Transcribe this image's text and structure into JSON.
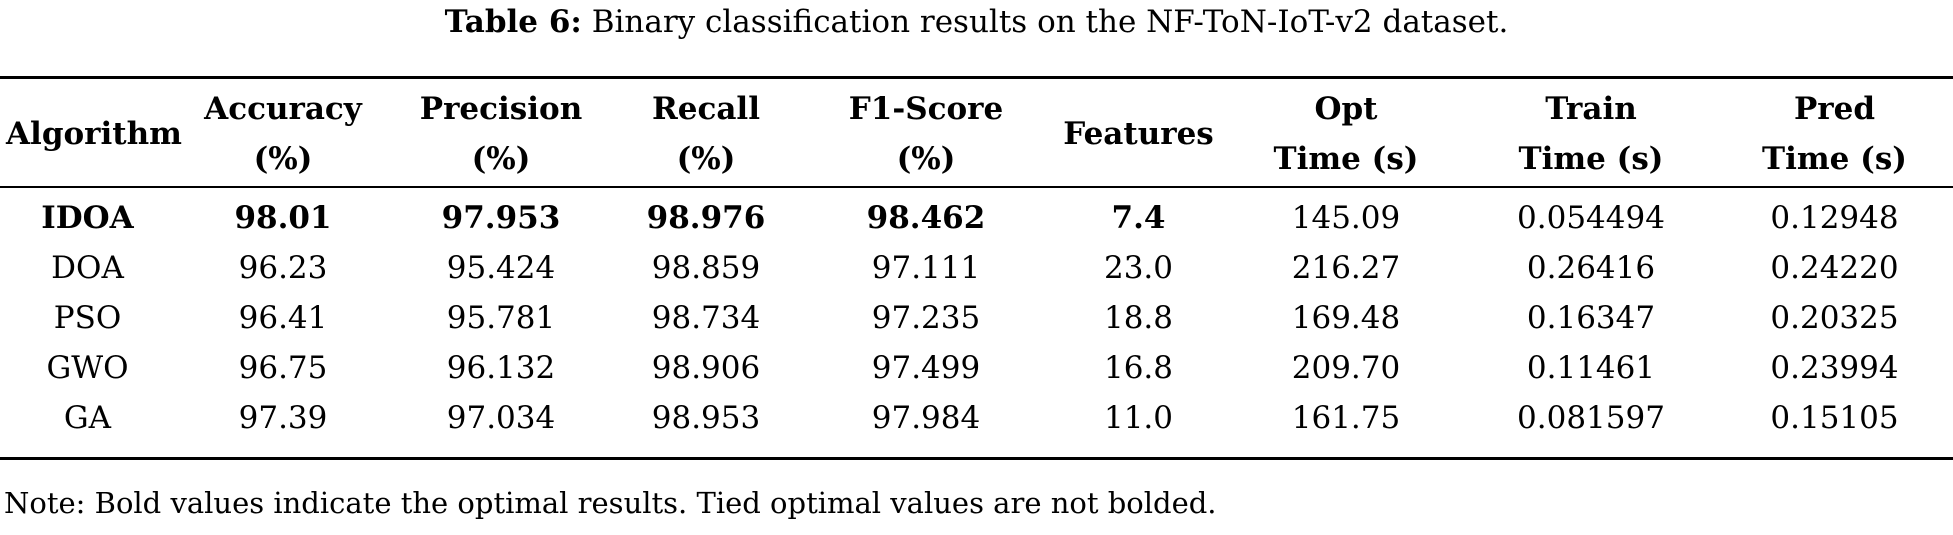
{
  "caption": {
    "label": "Table 6:",
    "text": "Binary classification results on the NF-ToN-IoT-v2 dataset."
  },
  "columns": [
    {
      "line1": "Algorithm",
      "line2": ""
    },
    {
      "line1": "Accuracy",
      "line2": "(%)"
    },
    {
      "line1": "Precision",
      "line2": "(%)"
    },
    {
      "line1": "Recall",
      "line2": "(%)"
    },
    {
      "line1": "F1-Score",
      "line2": "(%)"
    },
    {
      "line1": "Features",
      "line2": ""
    },
    {
      "line1": "Opt",
      "line2": "Time (s)"
    },
    {
      "line1": "Train",
      "line2": "Time (s)"
    },
    {
      "line1": "Pred",
      "line2": "Time (s)"
    }
  ],
  "rows": [
    {
      "algorithm": "IDOA",
      "accuracy": "98.01",
      "precision": "97.953",
      "recall": "98.976",
      "f1": "98.462",
      "features": "7.4",
      "opt_time": "145.09",
      "train_time": "0.054494",
      "pred_time": "0.12948"
    },
    {
      "algorithm": "DOA",
      "accuracy": "96.23",
      "precision": "95.424",
      "recall": "98.859",
      "f1": "97.111",
      "features": "23.0",
      "opt_time": "216.27",
      "train_time": "0.26416",
      "pred_time": "0.24220"
    },
    {
      "algorithm": "PSO",
      "accuracy": "96.41",
      "precision": "95.781",
      "recall": "98.734",
      "f1": "97.235",
      "features": "18.8",
      "opt_time": "169.48",
      "train_time": "0.16347",
      "pred_time": "0.20325"
    },
    {
      "algorithm": "GWO",
      "accuracy": "96.75",
      "precision": "96.132",
      "recall": "98.906",
      "f1": "97.499",
      "features": "16.8",
      "opt_time": "209.70",
      "train_time": "0.11461",
      "pred_time": "0.23994"
    },
    {
      "algorithm": "GA",
      "accuracy": "97.39",
      "precision": "97.034",
      "recall": "98.953",
      "f1": "97.984",
      "features": "11.0",
      "opt_time": "161.75",
      "train_time": "0.081597",
      "pred_time": "0.15105"
    }
  ],
  "note": "Note: Bold values indicate the optimal results. Tied optimal values are not bolded."
}
